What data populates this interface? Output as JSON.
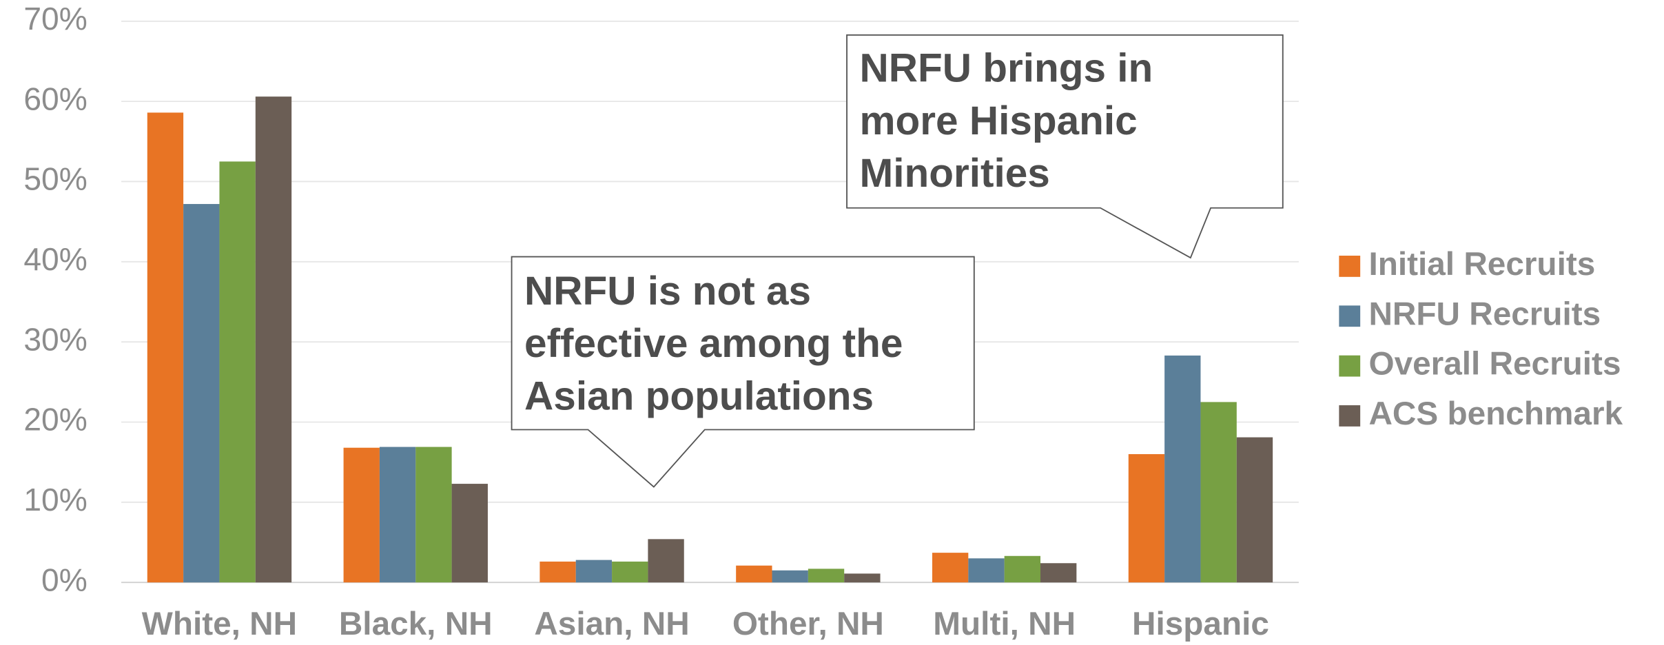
{
  "chart_data": {
    "type": "bar",
    "categories": [
      "White, NH",
      "Black, NH",
      "Asian, NH",
      "Other, NH",
      "Multi, NH",
      "Hispanic"
    ],
    "series": [
      {
        "name": "Initial Recruits",
        "color": "#e87424",
        "values": [
          58.6,
          16.8,
          2.6,
          2.1,
          3.7,
          16.0
        ]
      },
      {
        "name": "NRFU Recruits",
        "color": "#5b7f99",
        "values": [
          47.2,
          16.9,
          2.8,
          1.5,
          3.0,
          28.3
        ]
      },
      {
        "name": "Overall Recruits",
        "color": "#77a043",
        "values": [
          52.5,
          16.9,
          2.6,
          1.7,
          3.3,
          22.5
        ]
      },
      {
        "name": "ACS benchmark",
        "color": "#6b5e55",
        "values": [
          60.6,
          12.3,
          5.4,
          1.1,
          2.4,
          18.1
        ]
      }
    ],
    "ylim": [
      0,
      70
    ],
    "yticks": [
      {
        "value": 0,
        "label": "0%"
      },
      {
        "value": 10,
        "label": "10%"
      },
      {
        "value": 20,
        "label": "20%"
      },
      {
        "value": 30,
        "label": "30%"
      },
      {
        "value": 40,
        "label": "40%"
      },
      {
        "value": 50,
        "label": "50%"
      },
      {
        "value": 60,
        "label": "60%"
      },
      {
        "value": 70,
        "label": "70%"
      }
    ],
    "grid": true,
    "legend": "right",
    "annotations": [
      {
        "lines": [
          "NRFU brings in",
          "more Hispanic",
          "Minorities"
        ]
      },
      {
        "lines": [
          "NRFU is not as",
          "effective among the",
          "Asian populations"
        ]
      }
    ]
  }
}
